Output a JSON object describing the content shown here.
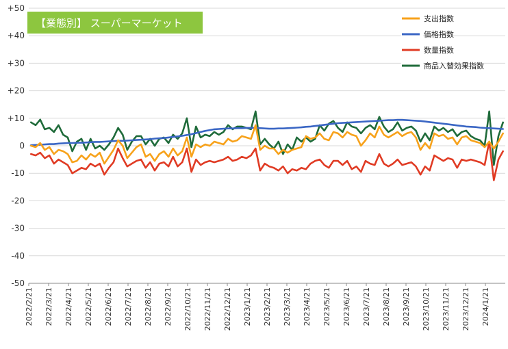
{
  "chart_data": {
    "type": "line",
    "title": "【業態別】 スーパーマーケット",
    "title_badge_color": "#8dc63f",
    "ylim": [
      -50,
      50
    ],
    "y_ticks": [
      "+50",
      "+40",
      "+30",
      "+20",
      "+10",
      "0",
      "-10",
      "-20",
      "-30",
      "-40",
      "-50"
    ],
    "x_ticks": [
      "2022/2/21",
      "2022/3/21",
      "2022/4/21",
      "2022/5/21",
      "2022/6/21",
      "2022/7/21",
      "2022/8/21",
      "2022/9/21",
      "2022/10/21",
      "2022/11/21",
      "2022/12/21",
      "2023/1/21",
      "2023/2/21",
      "2023/3/21",
      "2023/4/21",
      "2023/5/21",
      "2023/6/21",
      "2023/7/21",
      "2023/8/21",
      "2023/9/21",
      "2023/10/21",
      "2023/11/21",
      "2023/12/21",
      "2024/1/21"
    ],
    "grid": "horizontal",
    "legend_position": "top-right",
    "weeks": 104,
    "series": [
      {
        "name": "支出指数",
        "color": "#f7a21b",
        "values": [
          0.0,
          -0.5,
          1.0,
          -1.5,
          -0.5,
          -3.0,
          -1.5,
          -2.0,
          -3.0,
          -6.0,
          -5.5,
          -3.5,
          -5.0,
          -3.0,
          -4.0,
          -2.5,
          -6.5,
          -4.0,
          -1.5,
          2.0,
          0.0,
          -4.5,
          -2.5,
          -0.5,
          0.5,
          -4.0,
          -3.0,
          -5.5,
          -3.0,
          -2.0,
          -4.0,
          -1.0,
          -3.5,
          -2.0,
          3.0,
          -4.0,
          0.5,
          -0.5,
          0.5,
          0.0,
          1.5,
          1.0,
          0.5,
          2.5,
          1.5,
          2.0,
          3.5,
          3.0,
          2.5,
          7.5,
          -1.5,
          0.0,
          -1.0,
          -1.0,
          -3.0,
          -1.5,
          -2.5,
          -1.5,
          -1.0,
          -0.5,
          3.5,
          2.5,
          3.0,
          4.5,
          2.5,
          2.0,
          5.0,
          4.5,
          3.0,
          5.0,
          4.0,
          3.5,
          0.0,
          2.0,
          4.5,
          3.0,
          7.0,
          4.0,
          3.0,
          4.0,
          5.0,
          3.5,
          4.5,
          5.0,
          3.0,
          -1.5,
          1.0,
          -1.0,
          4.5,
          3.5,
          4.0,
          2.5,
          3.0,
          0.5,
          3.0,
          3.5,
          2.0,
          1.5,
          1.0,
          -0.5,
          1.5,
          -1.0,
          1.5,
          4.5
        ]
      },
      {
        "name": "価格指数",
        "color": "#3a66c4",
        "values": [
          0.2,
          0.3,
          0.4,
          0.5,
          0.6,
          0.6,
          0.8,
          0.9,
          1.0,
          1.0,
          1.1,
          1.1,
          1.2,
          1.3,
          1.4,
          1.4,
          1.5,
          1.6,
          1.7,
          1.8,
          1.8,
          1.9,
          2.0,
          2.1,
          2.2,
          2.3,
          2.4,
          2.6,
          2.7,
          2.8,
          3.0,
          3.2,
          3.4,
          3.6,
          3.9,
          4.2,
          4.6,
          5.0,
          5.4,
          5.7,
          6.0,
          6.1,
          6.2,
          6.3,
          6.3,
          6.4,
          6.4,
          6.5,
          6.5,
          6.5,
          6.4,
          6.3,
          6.2,
          6.2,
          6.3,
          6.3,
          6.4,
          6.5,
          6.6,
          6.7,
          6.9,
          7.0,
          7.2,
          7.4,
          7.6,
          7.8,
          8.0,
          8.2,
          8.3,
          8.4,
          8.5,
          8.6,
          8.7,
          8.8,
          8.9,
          9.0,
          9.1,
          9.2,
          9.3,
          9.3,
          9.4,
          9.4,
          9.3,
          9.2,
          9.1,
          9.0,
          8.8,
          8.6,
          8.4,
          8.2,
          8.0,
          7.8,
          7.6,
          7.4,
          7.2,
          7.0,
          6.9,
          6.8,
          6.6,
          6.5,
          6.4,
          6.3,
          6.2,
          6.1
        ]
      },
      {
        "name": "数量指数",
        "color": "#e03b24",
        "values": [
          -3.0,
          -3.5,
          -2.5,
          -4.5,
          -3.5,
          -6.5,
          -5.0,
          -6.0,
          -7.0,
          -10.0,
          -9.0,
          -8.0,
          -8.5,
          -6.5,
          -7.5,
          -6.5,
          -10.5,
          -8.0,
          -6.0,
          -1.0,
          -4.5,
          -7.5,
          -6.5,
          -5.5,
          -5.0,
          -8.0,
          -6.0,
          -9.0,
          -6.5,
          -6.0,
          -7.5,
          -4.0,
          -7.5,
          -6.0,
          -1.0,
          -9.5,
          -5.0,
          -7.0,
          -6.0,
          -5.5,
          -6.0,
          -5.5,
          -5.0,
          -4.0,
          -5.5,
          -5.0,
          -4.0,
          -4.5,
          -3.5,
          -1.0,
          -9.0,
          -6.5,
          -7.5,
          -8.0,
          -9.0,
          -7.5,
          -10.0,
          -8.5,
          -9.0,
          -8.0,
          -8.5,
          -6.5,
          -5.5,
          -5.0,
          -7.0,
          -8.0,
          -5.5,
          -5.5,
          -7.0,
          -5.5,
          -8.5,
          -7.5,
          -9.5,
          -5.5,
          -6.5,
          -7.0,
          -3.0,
          -6.5,
          -7.5,
          -6.5,
          -5.0,
          -7.0,
          -6.5,
          -6.0,
          -7.5,
          -10.5,
          -7.5,
          -9.0,
          -3.5,
          -4.5,
          -5.5,
          -4.5,
          -5.0,
          -8.0,
          -5.0,
          -5.5,
          -5.0,
          -5.5,
          -6.0,
          -7.0,
          1.5,
          -12.5,
          -5.0,
          -2.0
        ]
      },
      {
        "name": "商品入替効果指数",
        "color": "#1f6b3a",
        "values": [
          8.5,
          7.5,
          9.5,
          6.0,
          6.5,
          5.0,
          7.5,
          4.0,
          3.0,
          -2.0,
          1.5,
          2.5,
          -1.5,
          2.5,
          -1.0,
          0.0,
          -1.5,
          0.5,
          3.0,
          6.5,
          4.0,
          -1.5,
          1.5,
          3.5,
          3.5,
          0.5,
          2.5,
          0.0,
          2.5,
          3.0,
          1.0,
          4.0,
          2.5,
          4.5,
          10.0,
          -0.5,
          7.0,
          3.0,
          4.0,
          3.5,
          5.0,
          4.0,
          5.0,
          7.5,
          6.0,
          7.0,
          7.0,
          6.5,
          6.0,
          12.5,
          0.5,
          2.5,
          0.5,
          -1.0,
          1.5,
          -3.0,
          0.5,
          -1.5,
          3.0,
          1.5,
          3.0,
          1.5,
          2.5,
          7.5,
          5.5,
          8.0,
          9.0,
          6.5,
          5.0,
          8.5,
          7.0,
          6.5,
          4.5,
          6.5,
          7.5,
          6.0,
          10.5,
          7.0,
          5.0,
          6.0,
          8.5,
          5.5,
          6.5,
          7.0,
          5.5,
          1.5,
          4.5,
          2.0,
          7.0,
          5.5,
          6.5,
          5.0,
          6.0,
          3.5,
          5.0,
          5.5,
          3.5,
          2.5,
          2.0,
          0.0,
          12.5,
          -7.0,
          3.5,
          8.5
        ]
      }
    ]
  }
}
